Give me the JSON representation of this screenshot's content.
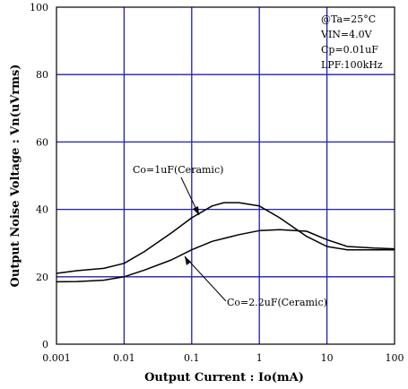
{
  "chart_data": {
    "type": "line",
    "title": "",
    "xlabel": "Output Current : Io(mA)",
    "ylabel": "Output Noise Voltage : Vn(uVrms)",
    "x_scale": "log",
    "xlim": [
      0.001,
      100
    ],
    "ylim": [
      0,
      100
    ],
    "x_ticks": [
      "0.001",
      "0.01",
      "0.1",
      "1",
      "10",
      "100"
    ],
    "y_ticks": [
      "0",
      "20",
      "40",
      "60",
      "80",
      "100"
    ],
    "grid": true,
    "conditions": [
      "@Ta=25°C",
      "VIN=4.0V",
      "Cp=0.01uF",
      "LPF:100kHz"
    ],
    "series": [
      {
        "name": "Co=1uF(Ceramic)",
        "x": [
          0.001,
          0.002,
          0.005,
          0.01,
          0.02,
          0.05,
          0.1,
          0.2,
          0.3,
          0.5,
          1,
          2,
          5,
          10,
          20,
          50,
          100
        ],
        "y": [
          21,
          21.8,
          22.5,
          24,
          27.5,
          33,
          37.5,
          41,
          42,
          42,
          41,
          37.5,
          32,
          29,
          28,
          28,
          28
        ]
      },
      {
        "name": "Co=2.2uF(Ceramic)",
        "x": [
          0.001,
          0.002,
          0.005,
          0.01,
          0.02,
          0.05,
          0.1,
          0.2,
          0.5,
          1,
          2,
          5,
          10,
          20,
          50,
          100
        ],
        "y": [
          18.5,
          18.6,
          19,
          20,
          22,
          25,
          28,
          30.5,
          32.5,
          33.7,
          34,
          33.5,
          31,
          29,
          28.5,
          28.3
        ]
      }
    ]
  }
}
